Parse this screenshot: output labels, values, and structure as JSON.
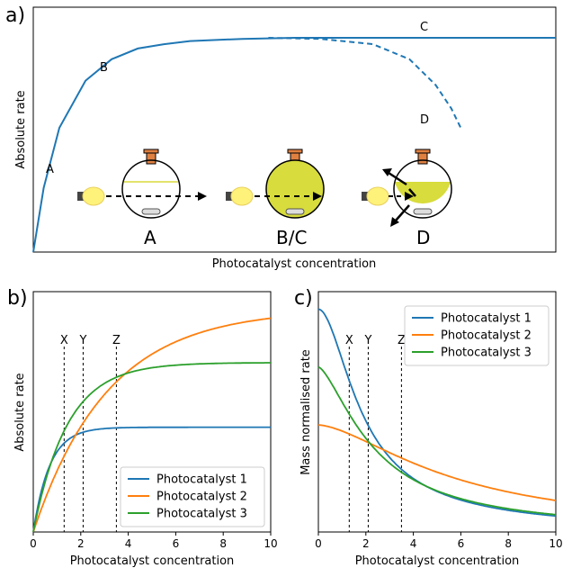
{
  "colors": {
    "blue": "#1f77b4",
    "orange": "#ff7f0e",
    "green": "#2ca02c",
    "flask_fill": "#d8dc3c",
    "flask_neck": "#e08040",
    "bulb": "#fff27a"
  },
  "chart_data": [
    {
      "panel_label": "a)",
      "type": "line",
      "xlabel": "Photocatalyst concentration",
      "ylabel": "Absolute rate",
      "grid": false,
      "series": [
        {
          "style": "solid",
          "x": [
            0,
            0.02,
            0.05,
            0.1,
            0.15,
            0.2,
            0.25,
            0.3,
            0.4,
            0.5,
            0.6,
            0.7,
            0.8,
            0.9,
            1.0
          ],
          "y": [
            0,
            0.3,
            0.58,
            0.8,
            0.9,
            0.95,
            0.97,
            0.985,
            0.995,
            1.0,
            1.0,
            1.0,
            1.0,
            1.0,
            1.0
          ]
        },
        {
          "style": "dashed",
          "x": [
            0.45,
            0.55,
            0.65,
            0.72,
            0.77,
            0.8,
            0.82
          ],
          "y": [
            1.0,
            0.995,
            0.97,
            0.9,
            0.78,
            0.67,
            0.57
          ]
        }
      ],
      "annotations": [
        "A",
        "B",
        "C",
        "D"
      ],
      "illustration_labels": [
        "A",
        "B/C",
        "D"
      ]
    },
    {
      "panel_label": "b)",
      "type": "line",
      "xlabel": "Photocatalyst concentration",
      "ylabel": "Absolute rate",
      "xlim": [
        0,
        10
      ],
      "xticks": [
        "0",
        "2",
        "4",
        "6",
        "8",
        "10"
      ],
      "vlines": [
        {
          "label": "X",
          "x": 1.3
        },
        {
          "label": "Y",
          "x": 2.1
        },
        {
          "label": "Z",
          "x": 3.5
        }
      ],
      "legend": "bottom-right",
      "series": [
        {
          "name": "Photocatalyst 1",
          "color": "blue",
          "k": 1.45,
          "ymax": 0.47
        },
        {
          "name": "Photocatalyst 2",
          "color": "orange",
          "k": 0.32,
          "ymax": 1.0
        },
        {
          "name": "Photocatalyst 3",
          "color": "green",
          "k": 0.7,
          "ymax": 0.76
        }
      ]
    },
    {
      "panel_label": "c)",
      "type": "line",
      "xlabel": "Photocatalyst concentration",
      "ylabel": "Mass normalised rate",
      "xlim": [
        0,
        10
      ],
      "xticks": [
        "0",
        "2",
        "4",
        "6",
        "8",
        "10"
      ],
      "vlines": [
        {
          "label": "X",
          "x": 1.3
        },
        {
          "label": "Y",
          "x": 2.1
        },
        {
          "label": "Z",
          "x": 3.5
        }
      ],
      "legend": "top-right",
      "series": [
        {
          "name": "Photocatalyst 1",
          "color": "blue"
        },
        {
          "name": "Photocatalyst 2",
          "color": "orange"
        },
        {
          "name": "Photocatalyst 3",
          "color": "green"
        }
      ]
    }
  ]
}
